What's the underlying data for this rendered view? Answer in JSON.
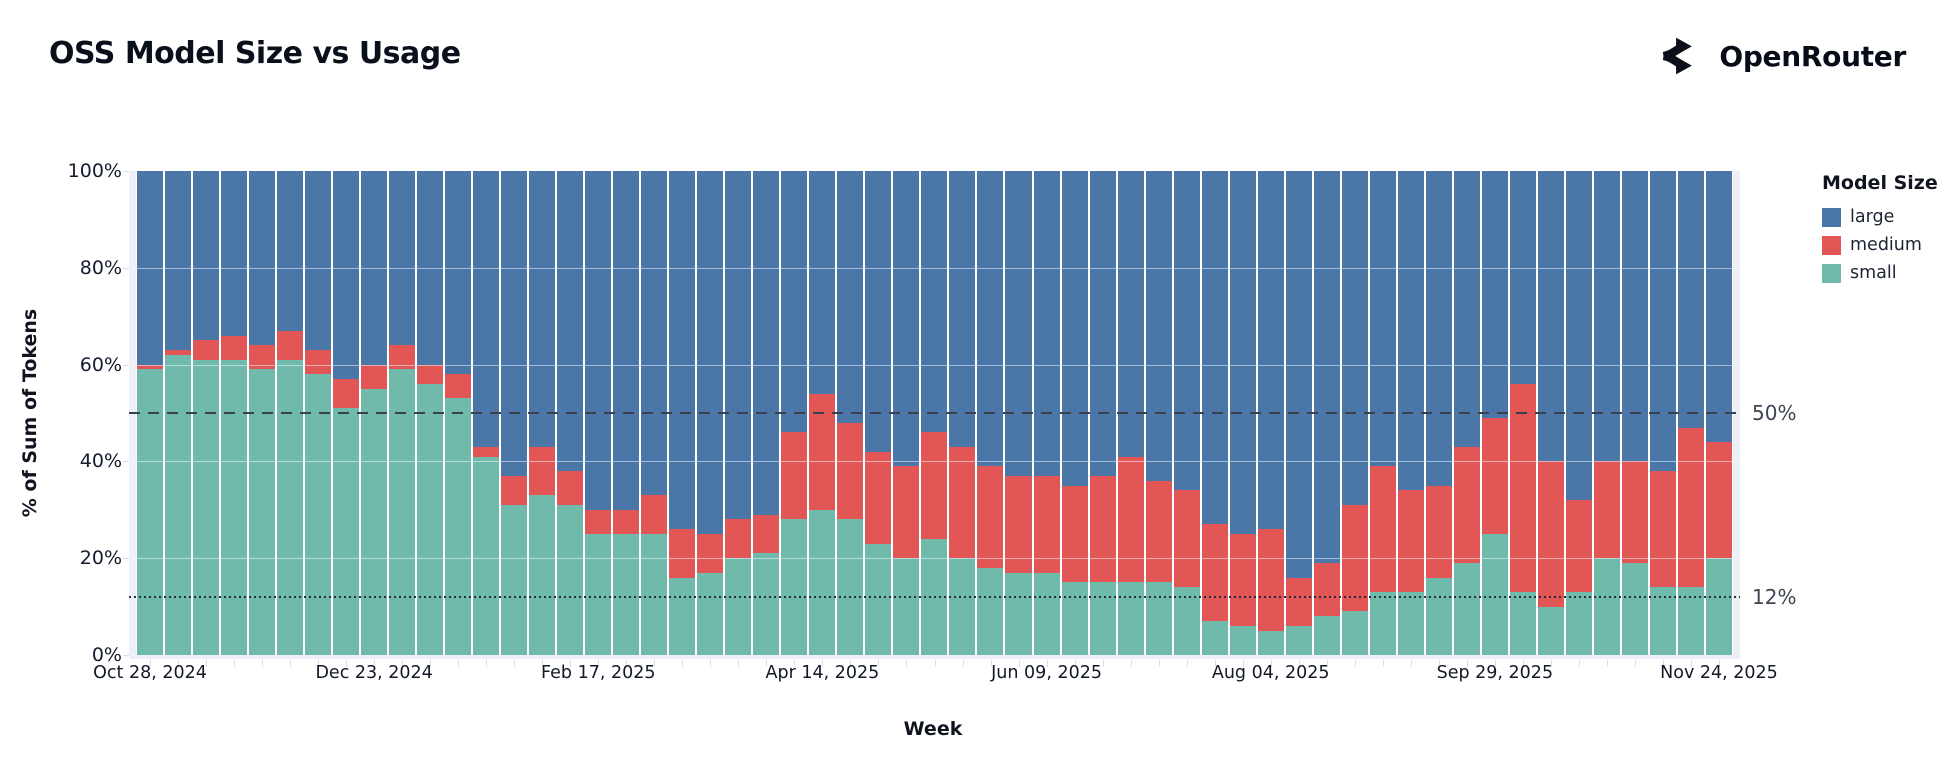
{
  "header": {
    "title": "OSS Model Size vs Usage",
    "brand": "OpenRouter"
  },
  "colors": {
    "large": "#4a76a8",
    "medium": "#e25656",
    "small": "#6fbaab",
    "plot_bg": "#edf0f7",
    "grid": "#f2f5fa",
    "ref_dashed": "#39404e",
    "ref_dotted": "#262d3a"
  },
  "legend": {
    "title": "Model Size",
    "items": [
      {
        "label": "large",
        "color": "#4a76a8"
      },
      {
        "label": "medium",
        "color": "#e25656"
      },
      {
        "label": "small",
        "color": "#6fbaab"
      }
    ]
  },
  "axes": {
    "y": {
      "title": "% of Sum of Tokens",
      "tick_labels": [
        "100%",
        "80%",
        "60%",
        "40%",
        "20%",
        "0%"
      ],
      "tick_values": [
        100,
        80,
        60,
        40,
        20,
        0
      ]
    },
    "x": {
      "title": "Week",
      "label_every": 8,
      "visible_labels": [
        "Oct 28, 2024",
        "Dec 23, 2024",
        "Feb 17, 2025",
        "Apr 14, 2025",
        "Jun 09, 2025",
        "Aug 04, 2025",
        "Sep 29, 2025",
        "Nov 24, 2025"
      ]
    }
  },
  "reference_lines": [
    {
      "value": 50,
      "label": "50%",
      "style": "dashed"
    },
    {
      "value": 12,
      "label": "12%",
      "style": "dotted"
    }
  ],
  "chart_data": {
    "type": "bar",
    "stacked": true,
    "title": "OSS Model Size vs Usage",
    "xlabel": "Week",
    "ylabel": "% of Sum of Tokens",
    "ylim": [
      0,
      100
    ],
    "unit": "percent",
    "legend_position": "right",
    "categories": [
      "Oct 28, 2024",
      "Nov 04, 2024",
      "Nov 11, 2024",
      "Nov 18, 2024",
      "Nov 25, 2024",
      "Dec 02, 2024",
      "Dec 09, 2024",
      "Dec 16, 2024",
      "Dec 23, 2024",
      "Dec 30, 2024",
      "Jan 06, 2025",
      "Jan 13, 2025",
      "Jan 20, 2025",
      "Jan 27, 2025",
      "Feb 03, 2025",
      "Feb 10, 2025",
      "Feb 17, 2025",
      "Feb 24, 2025",
      "Mar 03, 2025",
      "Mar 10, 2025",
      "Mar 17, 2025",
      "Mar 24, 2025",
      "Mar 31, 2025",
      "Apr 07, 2025",
      "Apr 14, 2025",
      "Apr 21, 2025",
      "Apr 28, 2025",
      "May 05, 2025",
      "May 12, 2025",
      "May 19, 2025",
      "May 26, 2025",
      "Jun 02, 2025",
      "Jun 09, 2025",
      "Jun 16, 2025",
      "Jun 23, 2025",
      "Jun 30, 2025",
      "Jul 07, 2025",
      "Jul 14, 2025",
      "Jul 21, 2025",
      "Jul 28, 2025",
      "Aug 04, 2025",
      "Aug 11, 2025",
      "Aug 18, 2025",
      "Aug 25, 2025",
      "Sep 01, 2025",
      "Sep 08, 2025",
      "Sep 15, 2025",
      "Sep 22, 2025",
      "Sep 29, 2025",
      "Oct 06, 2025",
      "Oct 13, 2025",
      "Oct 20, 2025",
      "Oct 27, 2025",
      "Nov 03, 2025",
      "Nov 10, 2025",
      "Nov 17, 2025",
      "Nov 24, 2025"
    ],
    "series": [
      {
        "name": "small",
        "color": "#6fbaab",
        "values": [
          59,
          62,
          61,
          61,
          59,
          61,
          58,
          51,
          55,
          59,
          56,
          53,
          41,
          31,
          33,
          31,
          25,
          25,
          25,
          16,
          17,
          20,
          21,
          28,
          30,
          28,
          23,
          20,
          24,
          20,
          18,
          17,
          17,
          15,
          15,
          15,
          15,
          14,
          7,
          6,
          5,
          6,
          8,
          9,
          13,
          13,
          16,
          19,
          25,
          13,
          10,
          13,
          20,
          19,
          14,
          14,
          20
        ]
      },
      {
        "name": "medium",
        "color": "#e25656",
        "values": [
          1,
          1,
          4,
          5,
          5,
          6,
          5,
          6,
          5,
          5,
          4,
          5,
          2,
          6,
          10,
          7,
          5,
          5,
          8,
          10,
          8,
          8,
          8,
          18,
          24,
          20,
          19,
          19,
          22,
          23,
          21,
          20,
          20,
          20,
          22,
          26,
          21,
          20,
          20,
          19,
          21,
          10,
          11,
          22,
          26,
          21,
          19,
          24,
          24,
          43,
          30,
          19,
          20,
          21,
          24,
          33,
          24
        ]
      },
      {
        "name": "large",
        "color": "#4a76a8",
        "values": [
          40,
          37,
          35,
          34,
          36,
          33,
          37,
          43,
          40,
          36,
          40,
          42,
          57,
          63,
          57,
          62,
          70,
          70,
          67,
          74,
          75,
          72,
          71,
          54,
          46,
          52,
          58,
          61,
          54,
          57,
          61,
          63,
          63,
          65,
          63,
          59,
          64,
          66,
          73,
          75,
          74,
          84,
          81,
          69,
          61,
          66,
          65,
          57,
          51,
          44,
          60,
          68,
          60,
          60,
          62,
          53,
          56
        ]
      }
    ]
  }
}
